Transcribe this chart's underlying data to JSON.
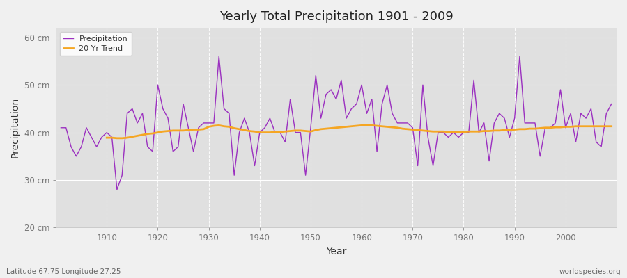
{
  "title": "Yearly Total Precipitation 1901 - 2009",
  "xlabel": "Year",
  "ylabel": "Precipitation",
  "footnote_left": "Latitude 67.75 Longitude 27.25",
  "footnote_right": "worldspecies.org",
  "ylim": [
    20,
    62
  ],
  "yticks": [
    20,
    30,
    40,
    50,
    60
  ],
  "ytick_labels": [
    "20 cm",
    "30 cm",
    "40 cm",
    "50 cm",
    "60 cm"
  ],
  "fig_bg_color": "#f0f0f0",
  "plot_bg_color": "#e0e0e0",
  "precip_color": "#9b30c0",
  "trend_color": "#f5a623",
  "years": [
    1901,
    1902,
    1903,
    1904,
    1905,
    1906,
    1907,
    1908,
    1909,
    1910,
    1911,
    1912,
    1913,
    1914,
    1915,
    1916,
    1917,
    1918,
    1919,
    1920,
    1921,
    1922,
    1923,
    1924,
    1925,
    1926,
    1927,
    1928,
    1929,
    1930,
    1931,
    1932,
    1933,
    1934,
    1935,
    1936,
    1937,
    1938,
    1939,
    1940,
    1941,
    1942,
    1943,
    1944,
    1945,
    1946,
    1947,
    1948,
    1949,
    1950,
    1951,
    1952,
    1953,
    1954,
    1955,
    1956,
    1957,
    1958,
    1959,
    1960,
    1961,
    1962,
    1963,
    1964,
    1965,
    1966,
    1967,
    1968,
    1969,
    1970,
    1971,
    1972,
    1973,
    1974,
    1975,
    1976,
    1977,
    1978,
    1979,
    1980,
    1981,
    1982,
    1983,
    1984,
    1985,
    1986,
    1987,
    1988,
    1989,
    1990,
    1991,
    1992,
    1993,
    1994,
    1995,
    1996,
    1997,
    1998,
    1999,
    2000,
    2001,
    2002,
    2003,
    2004,
    2005,
    2006,
    2007,
    2008,
    2009
  ],
  "precip": [
    41,
    41,
    37,
    35,
    37,
    41,
    39,
    37,
    39,
    40,
    39,
    28,
    31,
    44,
    45,
    42,
    44,
    37,
    36,
    50,
    45,
    43,
    36,
    37,
    46,
    41,
    36,
    41,
    42,
    42,
    42,
    56,
    45,
    44,
    31,
    40,
    43,
    40,
    33,
    40,
    41,
    43,
    40,
    40,
    38,
    47,
    40,
    40,
    31,
    41,
    52,
    43,
    48,
    49,
    47,
    51,
    43,
    45,
    46,
    50,
    44,
    47,
    36,
    46,
    50,
    44,
    42,
    42,
    42,
    41,
    33,
    50,
    39,
    33,
    40,
    40,
    39,
    40,
    39,
    40,
    40,
    51,
    40,
    42,
    34,
    42,
    44,
    43,
    39,
    43,
    56,
    42,
    42,
    42,
    35,
    41,
    41,
    42,
    49,
    41,
    44,
    38,
    44,
    43,
    45,
    38,
    37,
    44,
    46
  ],
  "trend": [
    null,
    null,
    null,
    null,
    null,
    null,
    null,
    null,
    null,
    38.9,
    38.9,
    38.8,
    38.8,
    38.9,
    39.1,
    39.3,
    39.5,
    39.7,
    39.8,
    40.0,
    40.2,
    40.3,
    40.4,
    40.4,
    40.4,
    40.5,
    40.6,
    40.6,
    40.7,
    41.2,
    41.4,
    41.5,
    41.3,
    41.2,
    40.9,
    40.7,
    40.5,
    40.3,
    40.2,
    40.0,
    40.0,
    40.0,
    40.1,
    40.1,
    40.2,
    40.3,
    40.4,
    40.4,
    40.3,
    40.2,
    40.5,
    40.7,
    40.8,
    40.9,
    41.0,
    41.1,
    41.2,
    41.3,
    41.4,
    41.5,
    41.5,
    41.5,
    41.4,
    41.3,
    41.2,
    41.1,
    41.0,
    40.8,
    40.7,
    40.6,
    40.5,
    40.4,
    40.3,
    40.2,
    40.2,
    40.2,
    40.1,
    40.1,
    40.1,
    40.1,
    40.2,
    40.2,
    40.2,
    40.3,
    40.3,
    40.4,
    40.4,
    40.5,
    40.5,
    40.6,
    40.7,
    40.7,
    40.8,
    40.8,
    40.9,
    41.0,
    41.0,
    41.1,
    41.1,
    41.2,
    41.2,
    41.3,
    41.3,
    41.3,
    41.3,
    41.3,
    41.3,
    41.3,
    41.3
  ]
}
